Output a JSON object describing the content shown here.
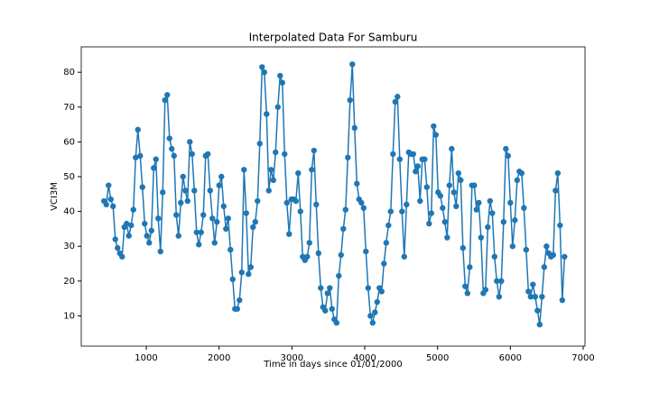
{
  "chart_data": {
    "type": "line",
    "title": "Interpolated Data For Samburu",
    "xlabel": "Time in days since 01/01/2000",
    "ylabel": "VCI3M",
    "x": [
      420,
      451,
      482,
      513,
      544,
      575,
      606,
      637,
      668,
      699,
      730,
      761,
      792,
      823,
      854,
      885,
      916,
      947,
      978,
      1009,
      1040,
      1071,
      1102,
      1133,
      1164,
      1195,
      1226,
      1257,
      1288,
      1319,
      1350,
      1381,
      1412,
      1443,
      1474,
      1505,
      1536,
      1567,
      1598,
      1629,
      1660,
      1691,
      1722,
      1753,
      1784,
      1815,
      1846,
      1877,
      1908,
      1939,
      1970,
      2001,
      2032,
      2063,
      2094,
      2125,
      2156,
      2187,
      2218,
      2249,
      2280,
      2311,
      2342,
      2373,
      2404,
      2435,
      2466,
      2497,
      2528,
      2559,
      2590,
      2621,
      2652,
      2683,
      2714,
      2745,
      2776,
      2807,
      2838,
      2869,
      2900,
      2931,
      2962,
      2993,
      3024,
      3055,
      3086,
      3117,
      3148,
      3179,
      3210,
      3241,
      3272,
      3303,
      3334,
      3365,
      3396,
      3427,
      3458,
      3489,
      3520,
      3551,
      3582,
      3613,
      3644,
      3675,
      3706,
      3737,
      3768,
      3799,
      3830,
      3861,
      3892,
      3923,
      3954,
      3985,
      4016,
      4047,
      4078,
      4109,
      4140,
      4171,
      4202,
      4233,
      4264,
      4295,
      4326,
      4357,
      4388,
      4419,
      4450,
      4481,
      4512,
      4543,
      4574,
      4605,
      4636,
      4667,
      4698,
      4729,
      4760,
      4791,
      4822,
      4853,
      4884,
      4915,
      4946,
      4977,
      5008,
      5039,
      5070,
      5101,
      5132,
      5163,
      5194,
      5225,
      5256,
      5287,
      5318,
      5349,
      5380,
      5411,
      5442,
      5473,
      5504,
      5535,
      5566,
      5597,
      5628,
      5659,
      5690,
      5721,
      5752,
      5783,
      5814,
      5845,
      5876,
      5907,
      5938,
      5969,
      6000,
      6031,
      6062,
      6093,
      6124,
      6155,
      6186,
      6217,
      6248,
      6279,
      6310,
      6341,
      6372,
      6403,
      6434,
      6465,
      6496,
      6527,
      6558,
      6589,
      6620,
      6651,
      6682,
      6713,
      6744
    ],
    "series": [
      {
        "name": "VCI3M",
        "color": "#1f77b4",
        "values": [
          43,
          42,
          47.5,
          43.5,
          41.5,
          32,
          29.5,
          28,
          27,
          35.5,
          36.5,
          33,
          36,
          40.5,
          55.5,
          63.5,
          56,
          47,
          36.5,
          33,
          31,
          34.5,
          52.5,
          55,
          38,
          28.5,
          45.5,
          72,
          73.5,
          61,
          58,
          56,
          39,
          33,
          42.5,
          50,
          46,
          43,
          60,
          56.5,
          46,
          34,
          30.5,
          34,
          39,
          56,
          56.5,
          46,
          38,
          31,
          37,
          47.5,
          50,
          41.5,
          35,
          38,
          29,
          20.5,
          12,
          12,
          14.5,
          22.5,
          52,
          39.5,
          22,
          24,
          35.5,
          37,
          43,
          59.5,
          81.5,
          80,
          68,
          46,
          52,
          49,
          57,
          70,
          79,
          77,
          56.5,
          42.5,
          33.5,
          43.5,
          43.5,
          43,
          51,
          40,
          27,
          26,
          27,
          31,
          52,
          57.5,
          42,
          28,
          18,
          12.5,
          11.5,
          16.5,
          18,
          12,
          9,
          8,
          21.5,
          27.5,
          35,
          40.5,
          55.5,
          72,
          82.3,
          64,
          48,
          43.5,
          42.5,
          41,
          28.5,
          18,
          10,
          8,
          11,
          14,
          18,
          17,
          25,
          31,
          36,
          40,
          56.5,
          71.5,
          73,
          55,
          40,
          27,
          42,
          57,
          56.5,
          56.5,
          51.5,
          53,
          43,
          55,
          55,
          47,
          36.5,
          39.5,
          64.5,
          62,
          45.5,
          44.5,
          41,
          37,
          32.5,
          47.5,
          58,
          45.5,
          41.5,
          51,
          49,
          29.5,
          18.5,
          16.5,
          24,
          47.5,
          47.5,
          40.5,
          42.5,
          32.5,
          16.5,
          17.5,
          35.5,
          43,
          39.5,
          27,
          20,
          15.5,
          20,
          37,
          58,
          56,
          42.5,
          30,
          37.5,
          49,
          51.5,
          51,
          41,
          29,
          17,
          15.5,
          19,
          15.5,
          11.5,
          7.5,
          15.5,
          24,
          30,
          28,
          27,
          27.5,
          46,
          51,
          36,
          14.5,
          27
        ]
      }
    ],
    "xlim": [
      107,
      7025
    ],
    "xticks": [
      1000,
      2000,
      3000,
      4000,
      5000,
      6000,
      7000
    ],
    "ylim": [
      1.3,
      87.3
    ],
    "yticks": [
      10,
      20,
      30,
      40,
      50,
      60,
      70,
      80
    ],
    "grid": false,
    "markers": true
  }
}
